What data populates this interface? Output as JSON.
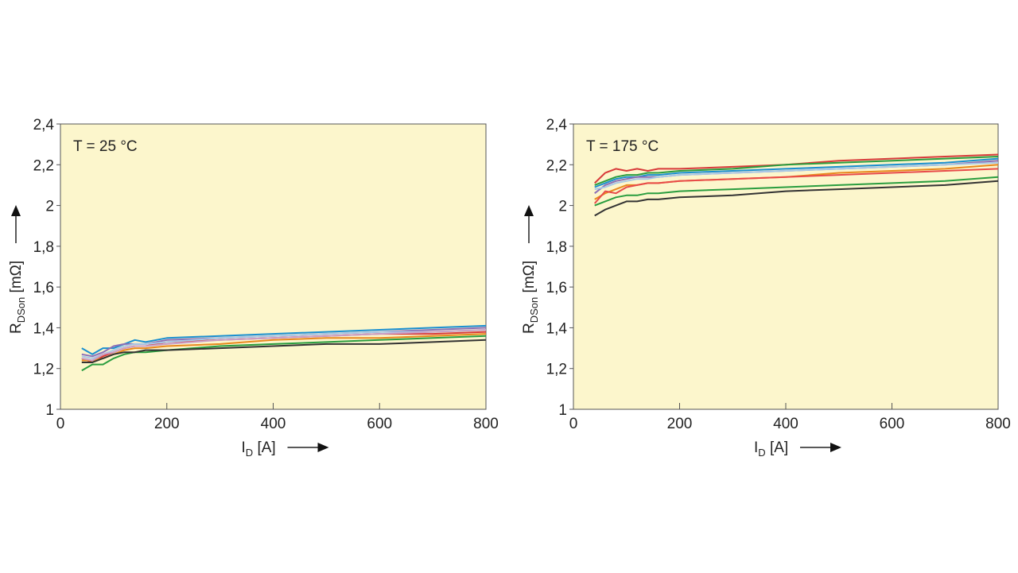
{
  "chart_data": [
    {
      "type": "line",
      "annotation": "T = 25 °C",
      "xlabel": "I_D [A]",
      "xlabel_main": "I",
      "xlabel_sub": "D",
      "xlabel_unit": " [A]",
      "ylabel": "R_DSon [mΩ]",
      "ylabel_main": "R",
      "ylabel_sub": "DSon",
      "ylabel_unit": " [mΩ]",
      "xlim": [
        0,
        800
      ],
      "ylim": [
        1,
        2.4
      ],
      "xticks": [
        0,
        200,
        400,
        600,
        800
      ],
      "xtick_labels": [
        "0",
        "200",
        "400",
        "600",
        "800"
      ],
      "yticks": [
        1,
        1.2,
        1.4,
        1.6,
        1.8,
        2,
        2.2,
        2.4
      ],
      "ytick_labels": [
        "1",
        "1,2",
        "1,4",
        "1,6",
        "1,8",
        "2",
        "2,2",
        "2,4"
      ],
      "background": "#fcf6cc",
      "series": [
        {
          "color": "#1a8fd0",
          "x": [
            40,
            60,
            80,
            100,
            120,
            140,
            160,
            200,
            300,
            400,
            500,
            600,
            700,
            800
          ],
          "y": [
            1.3,
            1.27,
            1.3,
            1.3,
            1.32,
            1.34,
            1.33,
            1.35,
            1.36,
            1.37,
            1.38,
            1.39,
            1.4,
            1.41
          ]
        },
        {
          "color": "#8b6fb8",
          "x": [
            40,
            60,
            80,
            100,
            120,
            140,
            160,
            200,
            300,
            400,
            500,
            600,
            700,
            800
          ],
          "y": [
            1.27,
            1.26,
            1.28,
            1.31,
            1.32,
            1.32,
            1.32,
            1.34,
            1.35,
            1.36,
            1.37,
            1.38,
            1.39,
            1.4
          ]
        },
        {
          "color": "#d83a3a",
          "x": [
            40,
            60,
            80,
            100,
            120,
            140,
            160,
            200,
            300,
            400,
            500,
            600,
            700,
            800
          ],
          "y": [
            1.25,
            1.23,
            1.26,
            1.28,
            1.3,
            1.31,
            1.31,
            1.33,
            1.34,
            1.35,
            1.36,
            1.37,
            1.37,
            1.38
          ]
        },
        {
          "color": "#e8891e",
          "x": [
            40,
            60,
            80,
            100,
            120,
            140,
            160,
            200,
            300,
            400,
            500,
            600,
            700,
            800
          ],
          "y": [
            1.24,
            1.24,
            1.25,
            1.27,
            1.29,
            1.3,
            1.3,
            1.31,
            1.32,
            1.34,
            1.35,
            1.35,
            1.36,
            1.37
          ]
        },
        {
          "color": "#a9c9e6",
          "x": [
            40,
            60,
            80,
            100,
            120,
            140,
            160,
            200,
            300,
            400,
            500,
            600,
            700,
            800
          ],
          "y": [
            1.26,
            1.25,
            1.27,
            1.29,
            1.31,
            1.32,
            1.32,
            1.33,
            1.35,
            1.36,
            1.37,
            1.38,
            1.38,
            1.39
          ]
        },
        {
          "color": "#2a9d3f",
          "x": [
            40,
            60,
            80,
            100,
            120,
            140,
            160,
            200,
            300,
            400,
            500,
            600,
            700,
            800
          ],
          "y": [
            1.19,
            1.22,
            1.22,
            1.25,
            1.27,
            1.28,
            1.28,
            1.29,
            1.31,
            1.32,
            1.33,
            1.34,
            1.35,
            1.36
          ]
        },
        {
          "color": "#333333",
          "x": [
            40,
            60,
            80,
            100,
            120,
            140,
            160,
            200,
            300,
            400,
            500,
            600,
            700,
            800
          ],
          "y": [
            1.23,
            1.23,
            1.25,
            1.27,
            1.28,
            1.28,
            1.29,
            1.29,
            1.3,
            1.31,
            1.32,
            1.32,
            1.33,
            1.34
          ]
        },
        {
          "color": "#c9a0c9",
          "x": [
            40,
            60,
            80,
            100,
            120,
            140,
            160,
            200,
            300,
            400,
            500,
            600,
            700,
            800
          ],
          "y": [
            1.25,
            1.24,
            1.27,
            1.28,
            1.3,
            1.31,
            1.31,
            1.32,
            1.34,
            1.35,
            1.36,
            1.37,
            1.38,
            1.39
          ]
        }
      ]
    },
    {
      "type": "line",
      "annotation": "T = 175 °C",
      "xlabel": "I_D [A]",
      "xlabel_main": "I",
      "xlabel_sub": "D",
      "xlabel_unit": " [A]",
      "ylabel": "R_DSon [mΩ]",
      "ylabel_main": "R",
      "ylabel_sub": "DSon",
      "ylabel_unit": " [mΩ]",
      "xlim": [
        0,
        800
      ],
      "ylim": [
        1,
        2.4
      ],
      "xticks": [
        0,
        200,
        400,
        600,
        800
      ],
      "xtick_labels": [
        "0",
        "200",
        "400",
        "600",
        "800"
      ],
      "yticks": [
        1,
        1.2,
        1.4,
        1.6,
        1.8,
        2,
        2.2,
        2.4
      ],
      "ytick_labels": [
        "1",
        "1,2",
        "1,4",
        "1,6",
        "1,8",
        "2",
        "2,2",
        "2,4"
      ],
      "background": "#fcf6cc",
      "series": [
        {
          "color": "#d83a3a",
          "x": [
            40,
            60,
            80,
            100,
            120,
            140,
            160,
            200,
            300,
            400,
            500,
            600,
            700,
            800
          ],
          "y": [
            2.11,
            2.16,
            2.18,
            2.17,
            2.18,
            2.17,
            2.18,
            2.18,
            2.19,
            2.2,
            2.22,
            2.23,
            2.24,
            2.25
          ]
        },
        {
          "color": "#2a9d3f",
          "x": [
            40,
            60,
            80,
            100,
            120,
            140,
            160,
            200,
            300,
            400,
            500,
            600,
            700,
            800
          ],
          "y": [
            2.1,
            2.12,
            2.14,
            2.15,
            2.15,
            2.16,
            2.16,
            2.17,
            2.18,
            2.2,
            2.21,
            2.22,
            2.23,
            2.24
          ]
        },
        {
          "color": "#1a8fd0",
          "x": [
            40,
            60,
            80,
            100,
            120,
            140,
            160,
            200,
            300,
            400,
            500,
            600,
            700,
            800
          ],
          "y": [
            2.09,
            2.11,
            2.13,
            2.14,
            2.14,
            2.15,
            2.15,
            2.16,
            2.17,
            2.18,
            2.19,
            2.2,
            2.21,
            2.23
          ]
        },
        {
          "color": "#8b6fb8",
          "x": [
            40,
            60,
            80,
            100,
            120,
            140,
            160,
            200,
            300,
            400,
            500,
            600,
            700,
            800
          ],
          "y": [
            2.06,
            2.1,
            2.12,
            2.13,
            2.14,
            2.14,
            2.14,
            2.15,
            2.16,
            2.17,
            2.18,
            2.19,
            2.2,
            2.22
          ]
        },
        {
          "color": "#a9c9e6",
          "x": [
            40,
            60,
            80,
            100,
            120,
            140,
            160,
            200,
            300,
            400,
            500,
            600,
            700,
            800
          ],
          "y": [
            2.08,
            2.09,
            2.11,
            2.12,
            2.13,
            2.13,
            2.14,
            2.15,
            2.16,
            2.17,
            2.18,
            2.19,
            2.2,
            2.21
          ]
        },
        {
          "color": "#e8891e",
          "x": [
            40,
            60,
            80,
            100,
            120,
            140,
            160,
            200,
            300,
            400,
            500,
            600,
            700,
            800
          ],
          "y": [
            2.03,
            2.06,
            2.08,
            2.1,
            2.1,
            2.11,
            2.11,
            2.12,
            2.13,
            2.14,
            2.16,
            2.17,
            2.18,
            2.2
          ]
        },
        {
          "color": "#e84a4a",
          "x": [
            40,
            60,
            80,
            100,
            120,
            140,
            160,
            200,
            300,
            400,
            500,
            600,
            700,
            800
          ],
          "y": [
            2.01,
            2.07,
            2.06,
            2.09,
            2.1,
            2.11,
            2.11,
            2.12,
            2.13,
            2.14,
            2.15,
            2.16,
            2.17,
            2.18
          ]
        },
        {
          "color": "#2a9d3f",
          "x": [
            40,
            60,
            80,
            100,
            120,
            140,
            160,
            200,
            300,
            400,
            500,
            600,
            700,
            800
          ],
          "y": [
            2.0,
            2.02,
            2.04,
            2.05,
            2.05,
            2.06,
            2.06,
            2.07,
            2.08,
            2.09,
            2.1,
            2.11,
            2.12,
            2.14
          ]
        },
        {
          "color": "#333333",
          "x": [
            40,
            60,
            80,
            100,
            120,
            140,
            160,
            200,
            300,
            400,
            500,
            600,
            700,
            800
          ],
          "y": [
            1.95,
            1.98,
            2.0,
            2.02,
            2.02,
            2.03,
            2.03,
            2.04,
            2.05,
            2.07,
            2.08,
            2.09,
            2.1,
            2.12
          ]
        }
      ]
    }
  ]
}
